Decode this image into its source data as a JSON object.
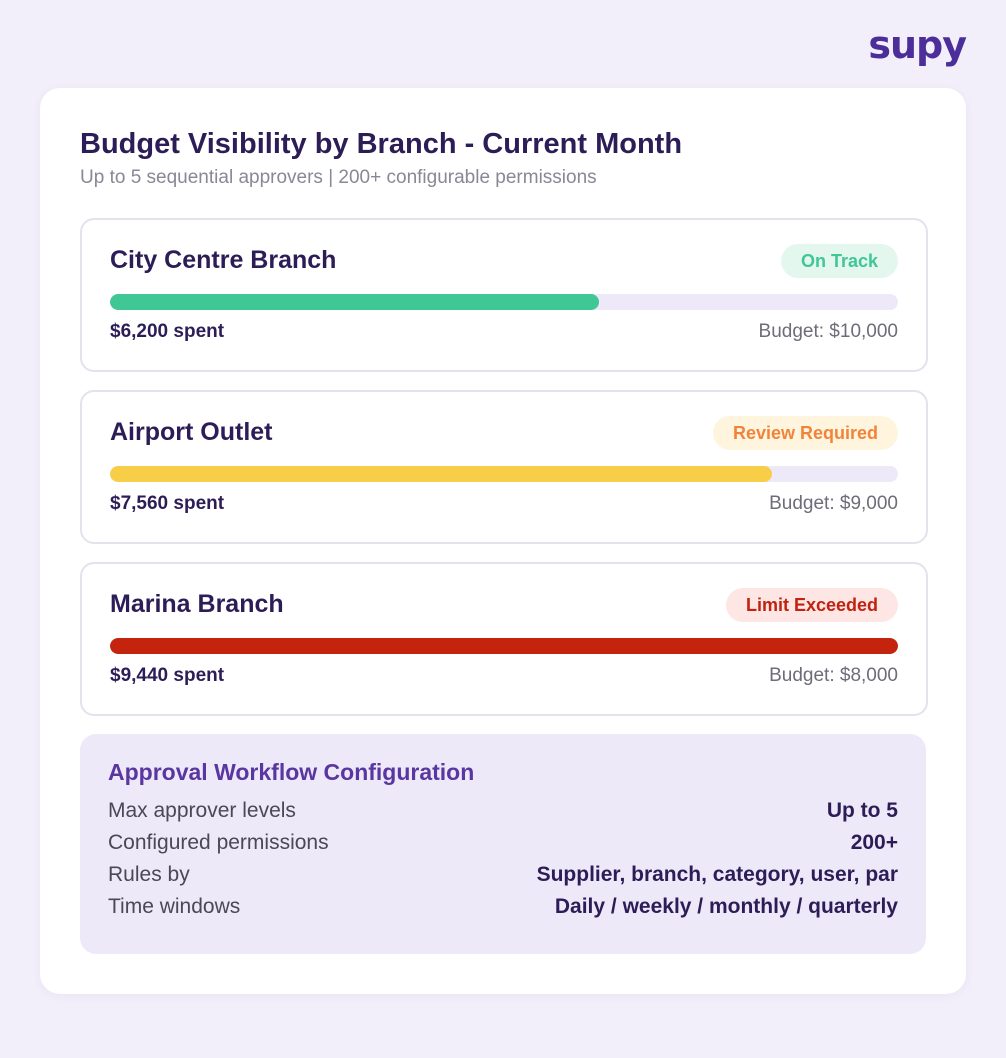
{
  "brand": {
    "logo_text": "supy",
    "color": "#4b2e99"
  },
  "header": {
    "title": "Budget Visibility by Branch - Current Month",
    "subtitle": "Up to 5 sequential approvers | 200+ configurable permissions"
  },
  "branches": [
    {
      "name": "City Centre Branch",
      "status": "On Track",
      "status_color": "#3fc796",
      "status_bg": "#e3f7ef",
      "bar_color": "#3fc796",
      "spent_text": "$6,200 spent",
      "budget_text": "Budget: $10,000",
      "progress": 0.62
    },
    {
      "name": "Airport Outlet",
      "status": "Review Required",
      "status_color": "#f0843a",
      "status_bg": "#fff5df",
      "bar_color": "#f8ce48",
      "spent_text": "$7,560 spent",
      "budget_text": "Budget: $9,000",
      "progress": 0.84
    },
    {
      "name": "Marina Branch",
      "status": "Limit Exceeded",
      "status_color": "#c0230f",
      "status_bg": "#fde6e4",
      "bar_color": "#c4240e",
      "spent_text": "$9,440 spent",
      "budget_text": "Budget: $8,000",
      "progress": 1.0
    }
  ],
  "config": {
    "title": "Approval Workflow Configuration",
    "rows": [
      {
        "label": "Max approver levels",
        "value": "Up to 5"
      },
      {
        "label": "Configured permissions",
        "value": "200+"
      },
      {
        "label": "Rules by",
        "value": "Supplier, branch, category, user, par"
      },
      {
        "label": "Time windows",
        "value": "Daily / weekly / monthly / quarterly"
      }
    ]
  }
}
